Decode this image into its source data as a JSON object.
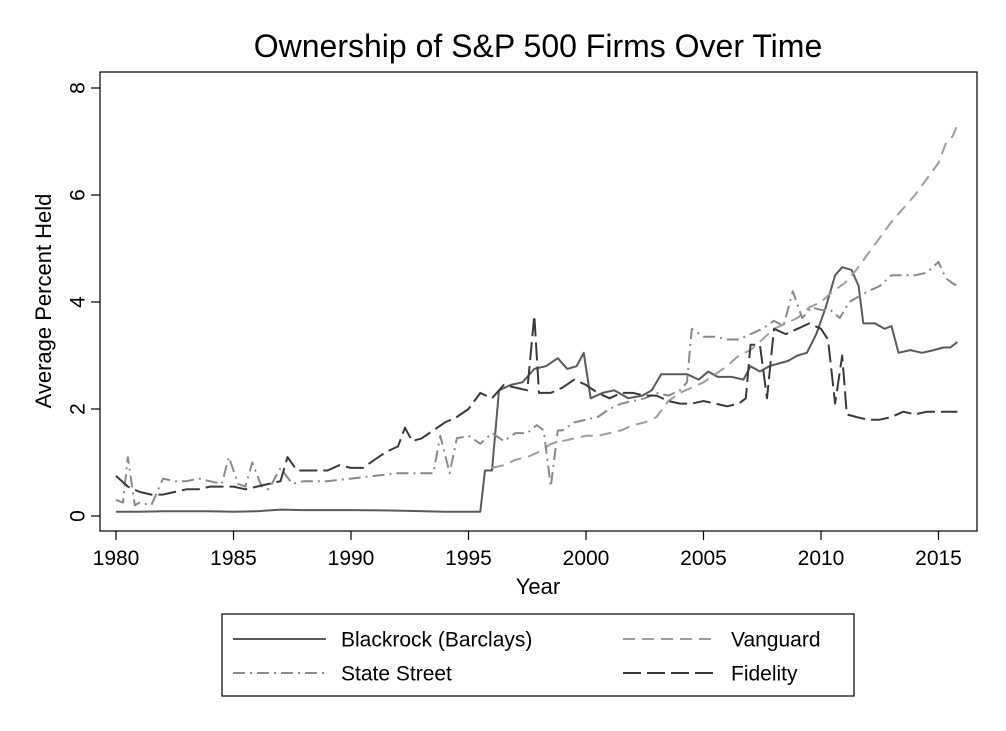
{
  "chart_data": {
    "type": "line",
    "title": "Ownership of S&P 500 Firms Over Time",
    "xlabel": "Year",
    "ylabel": "Average Percent Held",
    "xlim": [
      1980,
      2016
    ],
    "ylim": [
      0,
      8
    ],
    "x_ticks": [
      1980,
      1985,
      1990,
      1995,
      2000,
      2005,
      2010,
      2015
    ],
    "y_ticks": [
      0,
      2,
      4,
      6,
      8
    ],
    "grid": false,
    "legend_position": "bottom",
    "series": [
      {
        "name": "Blackrock (Barclays)",
        "color": "#5a5a5a",
        "dash": "solid",
        "points": [
          [
            1980.0,
            0.08
          ],
          [
            1981.0,
            0.08
          ],
          [
            1982.0,
            0.09
          ],
          [
            1983.0,
            0.09
          ],
          [
            1984.0,
            0.09
          ],
          [
            1985.0,
            0.08
          ],
          [
            1986.0,
            0.09
          ],
          [
            1987.0,
            0.12
          ],
          [
            1988.0,
            0.11
          ],
          [
            1990.0,
            0.11
          ],
          [
            1992.0,
            0.1
          ],
          [
            1994.0,
            0.08
          ],
          [
            1995.0,
            0.08
          ],
          [
            1995.5,
            0.08
          ],
          [
            1995.7,
            0.85
          ],
          [
            1996.0,
            0.85
          ],
          [
            1996.3,
            2.35
          ],
          [
            1996.8,
            2.45
          ],
          [
            1997.3,
            2.5
          ],
          [
            1997.8,
            2.75
          ],
          [
            1998.3,
            2.8
          ],
          [
            1998.8,
            2.95
          ],
          [
            1999.2,
            2.75
          ],
          [
            1999.6,
            2.8
          ],
          [
            1999.9,
            3.05
          ],
          [
            2000.2,
            2.2
          ],
          [
            2000.7,
            2.3
          ],
          [
            2001.2,
            2.35
          ],
          [
            2001.8,
            2.2
          ],
          [
            2002.4,
            2.25
          ],
          [
            2002.8,
            2.35
          ],
          [
            2003.2,
            2.65
          ],
          [
            2003.8,
            2.65
          ],
          [
            2004.3,
            2.65
          ],
          [
            2004.8,
            2.55
          ],
          [
            2005.2,
            2.7
          ],
          [
            2005.6,
            2.6
          ],
          [
            2006.2,
            2.6
          ],
          [
            2006.7,
            2.55
          ],
          [
            2007.0,
            2.8
          ],
          [
            2007.4,
            2.7
          ],
          [
            2007.8,
            2.8
          ],
          [
            2008.2,
            2.85
          ],
          [
            2008.6,
            2.9
          ],
          [
            2009.0,
            3.0
          ],
          [
            2009.4,
            3.05
          ],
          [
            2009.8,
            3.4
          ],
          [
            2010.2,
            3.9
          ],
          [
            2010.6,
            4.5
          ],
          [
            2010.9,
            4.65
          ],
          [
            2011.3,
            4.6
          ],
          [
            2011.6,
            4.3
          ],
          [
            2011.8,
            3.6
          ],
          [
            2012.3,
            3.6
          ],
          [
            2012.7,
            3.5
          ],
          [
            2013.0,
            3.55
          ],
          [
            2013.3,
            3.05
          ],
          [
            2013.8,
            3.1
          ],
          [
            2014.3,
            3.05
          ],
          [
            2014.8,
            3.1
          ],
          [
            2015.2,
            3.15
          ],
          [
            2015.5,
            3.15
          ],
          [
            2015.8,
            3.25
          ]
        ]
      },
      {
        "name": "Vanguard",
        "color": "#9e9e9e",
        "dash": "longdash",
        "points": [
          [
            1996.0,
            0.9
          ],
          [
            1996.5,
            0.95
          ],
          [
            1997.0,
            1.05
          ],
          [
            1997.5,
            1.1
          ],
          [
            1998.0,
            1.2
          ],
          [
            1998.5,
            1.35
          ],
          [
            1999.0,
            1.4
          ],
          [
            1999.5,
            1.45
          ],
          [
            2000.0,
            1.5
          ],
          [
            2000.5,
            1.5
          ],
          [
            2001.0,
            1.55
          ],
          [
            2001.5,
            1.6
          ],
          [
            2002.0,
            1.7
          ],
          [
            2002.5,
            1.75
          ],
          [
            2003.0,
            1.85
          ],
          [
            2003.5,
            2.15
          ],
          [
            2004.0,
            2.3
          ],
          [
            2004.5,
            2.4
          ],
          [
            2005.0,
            2.5
          ],
          [
            2005.5,
            2.65
          ],
          [
            2006.0,
            2.8
          ],
          [
            2006.5,
            3.0
          ],
          [
            2007.0,
            3.1
          ],
          [
            2007.5,
            3.3
          ],
          [
            2008.0,
            3.5
          ],
          [
            2008.5,
            3.6
          ],
          [
            2009.0,
            3.7
          ],
          [
            2009.5,
            3.9
          ],
          [
            2010.0,
            4.0
          ],
          [
            2010.5,
            4.2
          ],
          [
            2011.0,
            4.35
          ],
          [
            2011.5,
            4.6
          ],
          [
            2012.0,
            4.9
          ],
          [
            2012.5,
            5.2
          ],
          [
            2013.0,
            5.5
          ],
          [
            2013.5,
            5.75
          ],
          [
            2014.0,
            6.0
          ],
          [
            2014.5,
            6.3
          ],
          [
            2015.0,
            6.6
          ],
          [
            2015.3,
            6.95
          ],
          [
            2015.6,
            7.1
          ],
          [
            2015.8,
            7.3
          ]
        ]
      },
      {
        "name": "State Street",
        "color": "#8a8a8a",
        "dash": "dashdot",
        "points": [
          [
            1980.0,
            0.3
          ],
          [
            1980.3,
            0.25
          ],
          [
            1980.5,
            1.1
          ],
          [
            1980.8,
            0.2
          ],
          [
            1981.0,
            0.25
          ],
          [
            1981.5,
            0.2
          ],
          [
            1982.0,
            0.7
          ],
          [
            1982.5,
            0.65
          ],
          [
            1983.0,
            0.65
          ],
          [
            1983.5,
            0.7
          ],
          [
            1984.0,
            0.65
          ],
          [
            1984.5,
            0.6
          ],
          [
            1984.8,
            1.1
          ],
          [
            1985.2,
            0.6
          ],
          [
            1985.5,
            0.55
          ],
          [
            1985.8,
            1.0
          ],
          [
            1986.2,
            0.55
          ],
          [
            1986.5,
            0.5
          ],
          [
            1987.0,
            0.9
          ],
          [
            1987.5,
            0.6
          ],
          [
            1988.0,
            0.65
          ],
          [
            1989.0,
            0.65
          ],
          [
            1990.0,
            0.7
          ],
          [
            1991.0,
            0.75
          ],
          [
            1992.0,
            0.8
          ],
          [
            1993.0,
            0.8
          ],
          [
            1993.5,
            0.8
          ],
          [
            1993.8,
            1.5
          ],
          [
            1994.2,
            0.8
          ],
          [
            1994.5,
            1.45
          ],
          [
            1995.0,
            1.5
          ],
          [
            1995.5,
            1.35
          ],
          [
            1996.0,
            1.55
          ],
          [
            1996.5,
            1.4
          ],
          [
            1997.0,
            1.55
          ],
          [
            1997.5,
            1.55
          ],
          [
            1997.9,
            1.7
          ],
          [
            1998.2,
            1.6
          ],
          [
            1998.5,
            0.55
          ],
          [
            1998.8,
            1.6
          ],
          [
            1999.0,
            1.6
          ],
          [
            1999.5,
            1.75
          ],
          [
            2000.0,
            1.8
          ],
          [
            2000.5,
            1.85
          ],
          [
            2001.0,
            2.0
          ],
          [
            2001.5,
            2.1
          ],
          [
            2002.0,
            2.15
          ],
          [
            2002.5,
            2.2
          ],
          [
            2003.0,
            2.3
          ],
          [
            2003.5,
            2.25
          ],
          [
            2004.0,
            2.35
          ],
          [
            2004.3,
            2.5
          ],
          [
            2004.5,
            3.5
          ],
          [
            2005.0,
            3.35
          ],
          [
            2005.5,
            3.35
          ],
          [
            2006.0,
            3.3
          ],
          [
            2006.5,
            3.3
          ],
          [
            2007.0,
            3.4
          ],
          [
            2007.5,
            3.5
          ],
          [
            2008.0,
            3.65
          ],
          [
            2008.4,
            3.55
          ],
          [
            2008.8,
            4.2
          ],
          [
            2009.2,
            3.7
          ],
          [
            2009.6,
            3.9
          ],
          [
            2010.0,
            3.85
          ],
          [
            2010.4,
            3.85
          ],
          [
            2010.8,
            3.7
          ],
          [
            2011.2,
            4.0
          ],
          [
            2011.6,
            4.1
          ],
          [
            2012.0,
            4.2
          ],
          [
            2012.5,
            4.3
          ],
          [
            2013.0,
            4.5
          ],
          [
            2013.5,
            4.5
          ],
          [
            2014.0,
            4.5
          ],
          [
            2014.5,
            4.55
          ],
          [
            2015.0,
            4.75
          ],
          [
            2015.3,
            4.45
          ],
          [
            2015.6,
            4.35
          ],
          [
            2015.8,
            4.3
          ]
        ]
      },
      {
        "name": "Fidelity",
        "color": "#3a3a3a",
        "dash": "dash",
        "points": [
          [
            1980.0,
            0.75
          ],
          [
            1980.5,
            0.55
          ],
          [
            1981.0,
            0.45
          ],
          [
            1981.5,
            0.4
          ],
          [
            1982.0,
            0.4
          ],
          [
            1982.5,
            0.45
          ],
          [
            1983.0,
            0.5
          ],
          [
            1983.5,
            0.5
          ],
          [
            1984.0,
            0.55
          ],
          [
            1984.5,
            0.55
          ],
          [
            1985.0,
            0.55
          ],
          [
            1985.5,
            0.5
          ],
          [
            1986.0,
            0.55
          ],
          [
            1986.5,
            0.6
          ],
          [
            1987.0,
            0.65
          ],
          [
            1987.3,
            1.1
          ],
          [
            1987.7,
            0.85
          ],
          [
            1988.0,
            0.85
          ],
          [
            1988.5,
            0.85
          ],
          [
            1989.0,
            0.85
          ],
          [
            1989.5,
            0.95
          ],
          [
            1990.0,
            0.9
          ],
          [
            1990.5,
            0.9
          ],
          [
            1991.0,
            1.05
          ],
          [
            1991.5,
            1.2
          ],
          [
            1992.0,
            1.3
          ],
          [
            1992.3,
            1.65
          ],
          [
            1992.6,
            1.4
          ],
          [
            1993.0,
            1.45
          ],
          [
            1993.5,
            1.6
          ],
          [
            1994.0,
            1.75
          ],
          [
            1994.5,
            1.85
          ],
          [
            1995.0,
            2.0
          ],
          [
            1995.5,
            2.3
          ],
          [
            1996.0,
            2.2
          ],
          [
            1996.5,
            2.45
          ],
          [
            1997.0,
            2.4
          ],
          [
            1997.5,
            2.35
          ],
          [
            1997.8,
            3.75
          ],
          [
            1998.0,
            2.3
          ],
          [
            1998.5,
            2.3
          ],
          [
            1999.0,
            2.4
          ],
          [
            1999.5,
            2.55
          ],
          [
            2000.0,
            2.45
          ],
          [
            2000.5,
            2.3
          ],
          [
            2001.0,
            2.2
          ],
          [
            2001.5,
            2.3
          ],
          [
            2002.0,
            2.3
          ],
          [
            2002.5,
            2.25
          ],
          [
            2003.0,
            2.25
          ],
          [
            2003.5,
            2.15
          ],
          [
            2004.0,
            2.1
          ],
          [
            2004.5,
            2.1
          ],
          [
            2005.0,
            2.15
          ],
          [
            2005.5,
            2.1
          ],
          [
            2006.0,
            2.05
          ],
          [
            2006.5,
            2.1
          ],
          [
            2006.8,
            2.2
          ],
          [
            2007.0,
            3.2
          ],
          [
            2007.4,
            3.2
          ],
          [
            2007.7,
            2.2
          ],
          [
            2008.0,
            3.5
          ],
          [
            2008.5,
            3.4
          ],
          [
            2009.0,
            3.5
          ],
          [
            2009.5,
            3.6
          ],
          [
            2010.0,
            3.5
          ],
          [
            2010.3,
            3.3
          ],
          [
            2010.6,
            2.1
          ],
          [
            2010.9,
            3.0
          ],
          [
            2011.1,
            1.9
          ],
          [
            2011.5,
            1.85
          ],
          [
            2012.0,
            1.8
          ],
          [
            2012.5,
            1.8
          ],
          [
            2013.0,
            1.85
          ],
          [
            2013.5,
            1.95
          ],
          [
            2014.0,
            1.9
          ],
          [
            2014.5,
            1.95
          ],
          [
            2015.0,
            1.95
          ],
          [
            2015.5,
            1.95
          ],
          [
            2015.8,
            1.95
          ]
        ]
      }
    ]
  }
}
